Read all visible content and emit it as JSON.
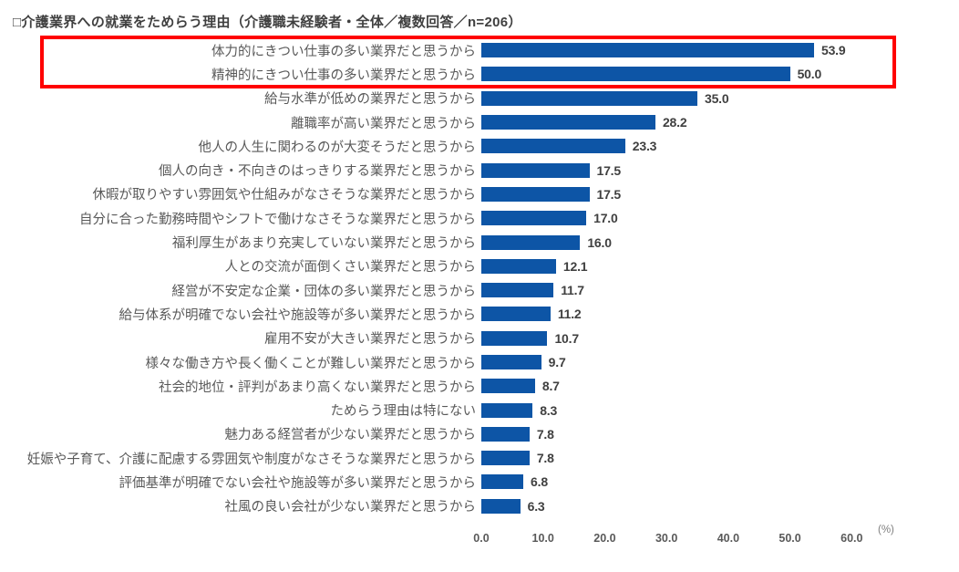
{
  "title": "□介護業界への就業をためらう理由（介護職未経験者・全体／複数回答／n=206）",
  "chart_data": {
    "type": "bar",
    "orientation": "horizontal",
    "title": "□介護業界への就業をためらう理由（介護職未経験者・全体／複数回答／n=206）",
    "unit_label": "(%)",
    "bar_color": "#0D55A6",
    "highlight_color": "#FF0000",
    "highlighted_rows": [
      0,
      1
    ],
    "xlim": [
      0.0,
      60.0
    ],
    "x_ticks": [
      "0.0",
      "10.0",
      "20.0",
      "30.0",
      "40.0",
      "50.0",
      "60.0"
    ],
    "grid": false,
    "legend": "none",
    "categories": [
      "体力的にきつい仕事の多い業界だと思うから",
      "精神的にきつい仕事の多い業界だと思うから",
      "給与水準が低めの業界だと思うから",
      "離職率が高い業界だと思うから",
      "他人の人生に関わるのが大変そうだと思うから",
      "個人の向き・不向きのはっきりする業界だと思うから",
      "休暇が取りやすい雰囲気や仕組みがなさそうな業界だと思うから",
      "自分に合った勤務時間やシフトで働けなさそうな業界だと思うから",
      "福利厚生があまり充実していない業界だと思うから",
      "人との交流が面倒くさい業界だと思うから",
      "経営が不安定な企業・団体の多い業界だと思うから",
      "給与体系が明確でない会社や施設等が多い業界だと思うから",
      "雇用不安が大きい業界だと思うから",
      "様々な働き方や長く働くことが難しい業界だと思うから",
      "社会的地位・評判があまり高くない業界だと思うから",
      "ためらう理由は特にない",
      "魅力ある経営者が少ない業界だと思うから",
      "妊娠や子育て、介護に配慮する雰囲気や制度がなさそうな業界だと思うから",
      "評価基準が明確でない会社や施設等が多い業界だと思うから",
      "社風の良い会社が少ない業界だと思うから"
    ],
    "values": [
      53.9,
      50.0,
      35.0,
      28.2,
      23.3,
      17.5,
      17.5,
      17.0,
      16.0,
      12.1,
      11.7,
      11.2,
      10.7,
      9.7,
      8.7,
      8.3,
      7.8,
      7.8,
      6.8,
      6.3
    ]
  }
}
